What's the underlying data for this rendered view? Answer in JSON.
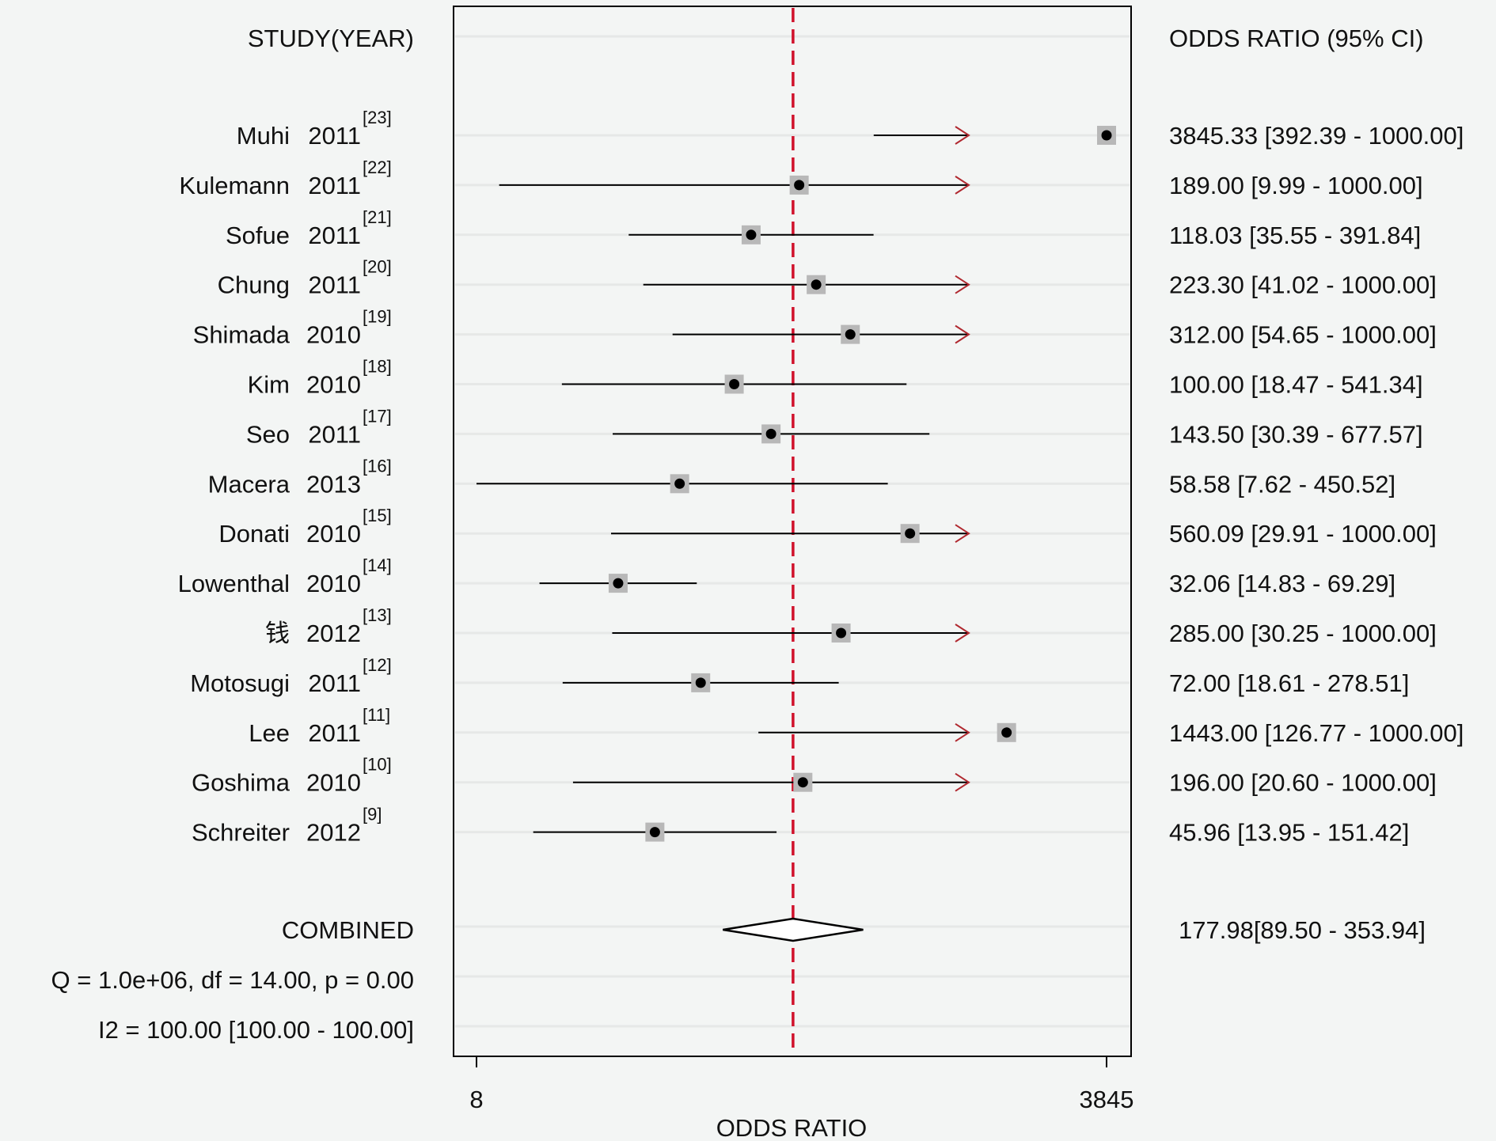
{
  "chart_data": {
    "type": "forest",
    "xlabel": "ODDS RATIO",
    "x_scale": "log",
    "xlim": [
      8,
      3845
    ],
    "xtick_labels": [
      "8",
      "3845"
    ],
    "reference_line": 177.98,
    "col_left_header": "STUDY(YEAR)",
    "col_right_header": "ODDS RATIO (95% CI)",
    "studies": [
      {
        "name": "Muhi",
        "year": "2011",
        "ref": "[23]",
        "or": 3845.33,
        "lo": 392.39,
        "hi": 1000.0,
        "ci_text": "3845.33 [392.39 - 1000.00]"
      },
      {
        "name": "Kulemann",
        "year": "2011",
        "ref": "[22]",
        "or": 189.0,
        "lo": 9.99,
        "hi": 1000.0,
        "ci_text": "189.00 [9.99 - 1000.00]"
      },
      {
        "name": "Sofue",
        "year": "2011",
        "ref": "[21]",
        "or": 118.03,
        "lo": 35.55,
        "hi": 391.84,
        "ci_text": "118.03 [35.55 - 391.84]"
      },
      {
        "name": "Chung",
        "year": "2011",
        "ref": "[20]",
        "or": 223.3,
        "lo": 41.02,
        "hi": 1000.0,
        "ci_text": "223.30 [41.02 - 1000.00]"
      },
      {
        "name": "Shimada",
        "year": "2010",
        "ref": "[19]",
        "or": 312.0,
        "lo": 54.65,
        "hi": 1000.0,
        "ci_text": "312.00 [54.65 - 1000.00]"
      },
      {
        "name": "Kim",
        "year": "2010",
        "ref": "[18]",
        "or": 100.0,
        "lo": 18.47,
        "hi": 541.34,
        "ci_text": "100.00 [18.47 - 541.34]"
      },
      {
        "name": "Seo",
        "year": "2011",
        "ref": "[17]",
        "or": 143.5,
        "lo": 30.39,
        "hi": 677.57,
        "ci_text": "143.50 [30.39 - 677.57]"
      },
      {
        "name": "Macera",
        "year": "2013",
        "ref": "[16]",
        "or": 58.58,
        "lo": 7.62,
        "hi": 450.52,
        "ci_text": "58.58 [7.62 - 450.52]"
      },
      {
        "name": "Donati",
        "year": "2010",
        "ref": "[15]",
        "or": 560.09,
        "lo": 29.91,
        "hi": 1000.0,
        "ci_text": "560.09 [29.91 - 1000.00]"
      },
      {
        "name": "Lowenthal",
        "year": "2010",
        "ref": "[14]",
        "or": 32.06,
        "lo": 14.83,
        "hi": 69.29,
        "ci_text": "32.06 [14.83 - 69.29]"
      },
      {
        "name": "钱",
        "year": "2012",
        "ref": "[13]",
        "or": 285.0,
        "lo": 30.25,
        "hi": 1000.0,
        "ci_text": "285.00 [30.25 - 1000.00]"
      },
      {
        "name": "Motosugi",
        "year": "2011",
        "ref": "[12]",
        "or": 72.0,
        "lo": 18.61,
        "hi": 278.51,
        "ci_text": "72.00 [18.61 - 278.51]"
      },
      {
        "name": "Lee",
        "year": "2011",
        "ref": "[11]",
        "or": 1443.0,
        "lo": 126.77,
        "hi": 1000.0,
        "ci_text": "1443.00 [126.77 - 1000.00]"
      },
      {
        "name": "Goshima",
        "year": "2010",
        "ref": "[10]",
        "or": 196.0,
        "lo": 20.6,
        "hi": 1000.0,
        "ci_text": "196.00 [20.60 - 1000.00]"
      },
      {
        "name": "Schreiter",
        "year": "2012",
        "ref": "[9]",
        "or": 45.96,
        "lo": 13.95,
        "hi": 151.42,
        "ci_text": "45.96 [13.95 - 151.42]"
      }
    ],
    "combined": {
      "label": "COMBINED",
      "or": 177.98,
      "lo": 89.5,
      "hi": 353.94,
      "ci_text": "177.98[89.50 - 353.94]"
    },
    "stats": {
      "q_text": "Q = 1.0e+06, df = 14.00, p =  0.00",
      "i2_text": "I2 = 100.00 [100.00 - 100.00]"
    },
    "colors": {
      "reference_line": "#d0112b",
      "arrow": "#b0282f",
      "box": "#b8b8b8",
      "point": "#000000",
      "gridline": "#e6e8e7"
    }
  }
}
